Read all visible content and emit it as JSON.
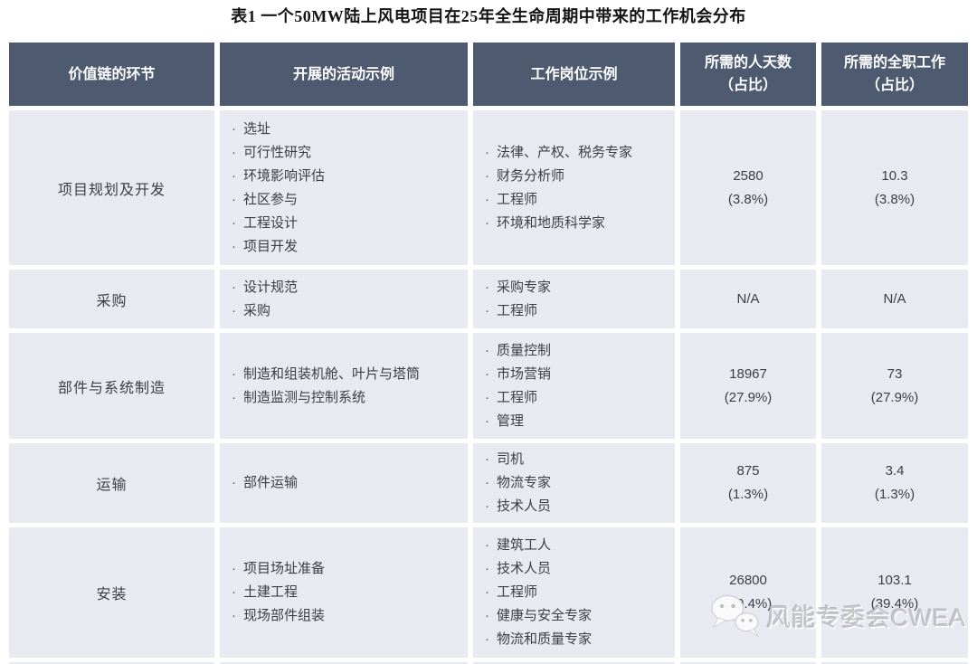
{
  "title": "表1 一个50MW陆上风电项目在25年全生命周期中带来的工作机会分布",
  "table": {
    "headers": [
      {
        "label": "价值链的环节"
      },
      {
        "label": "开展的活动示例"
      },
      {
        "label": "工作岗位示例"
      },
      {
        "label": "所需的人天数",
        "sub": "（占比）"
      },
      {
        "label": "所需的全职工作",
        "sub": "（占比）"
      }
    ],
    "rows": [
      {
        "stage": "项目规划及开发",
        "activities": [
          "选址",
          "可行性研究",
          "环境影响评估",
          "社区参与",
          "工程设计",
          "项目开发"
        ],
        "jobs": [
          "法律、产权、税务专家",
          "财务分析师",
          "工程师",
          "环境和地质科学家"
        ],
        "person_days": "2580",
        "person_days_pct": "(3.8%)",
        "fte": "10.3",
        "fte_pct": "(3.8%)"
      },
      {
        "stage": "采购",
        "activities": [
          "设计规范",
          "采购"
        ],
        "jobs": [
          "采购专家",
          "工程师"
        ],
        "person_days": "N/A",
        "fte": "N/A"
      },
      {
        "stage": "部件与系统制造",
        "activities": [
          "制造和组装机舱、叶片与塔筒",
          "制造监测与控制系统"
        ],
        "jobs": [
          "质量控制",
          "市场营销",
          "工程师",
          "管理"
        ],
        "person_days": "18967",
        "person_days_pct": "(27.9%)",
        "fte": "73",
        "fte_pct": "(27.9%)"
      },
      {
        "stage": "运输",
        "activities": [
          "部件运输"
        ],
        "jobs": [
          "司机",
          "物流专家",
          "技术人员"
        ],
        "person_days": "875",
        "person_days_pct": "(1.3%)",
        "fte": "3.4",
        "fte_pct": "(1.3%)"
      },
      {
        "stage": "安装",
        "activities": [
          "项目场址准备",
          "土建工程",
          "现场部件组装"
        ],
        "jobs": [
          "建筑工人",
          "技术人员",
          "工程师",
          "健康与安全专家",
          "物流和质量专家"
        ],
        "person_days": "26800",
        "person_days_pct": "(39.4%)",
        "fte": "103.1",
        "fte_pct": "(39.4%)"
      }
    ]
  },
  "watermark": {
    "text": "风能专委会CWEA",
    "icon": "wechat-icon"
  },
  "colors": {
    "header_bg": "#4e5a70",
    "header_text": "#ffffff",
    "cell_bg": "#e9eaf1",
    "body_text": "#3c3d47",
    "watermark_text": "#c5c5cc"
  }
}
